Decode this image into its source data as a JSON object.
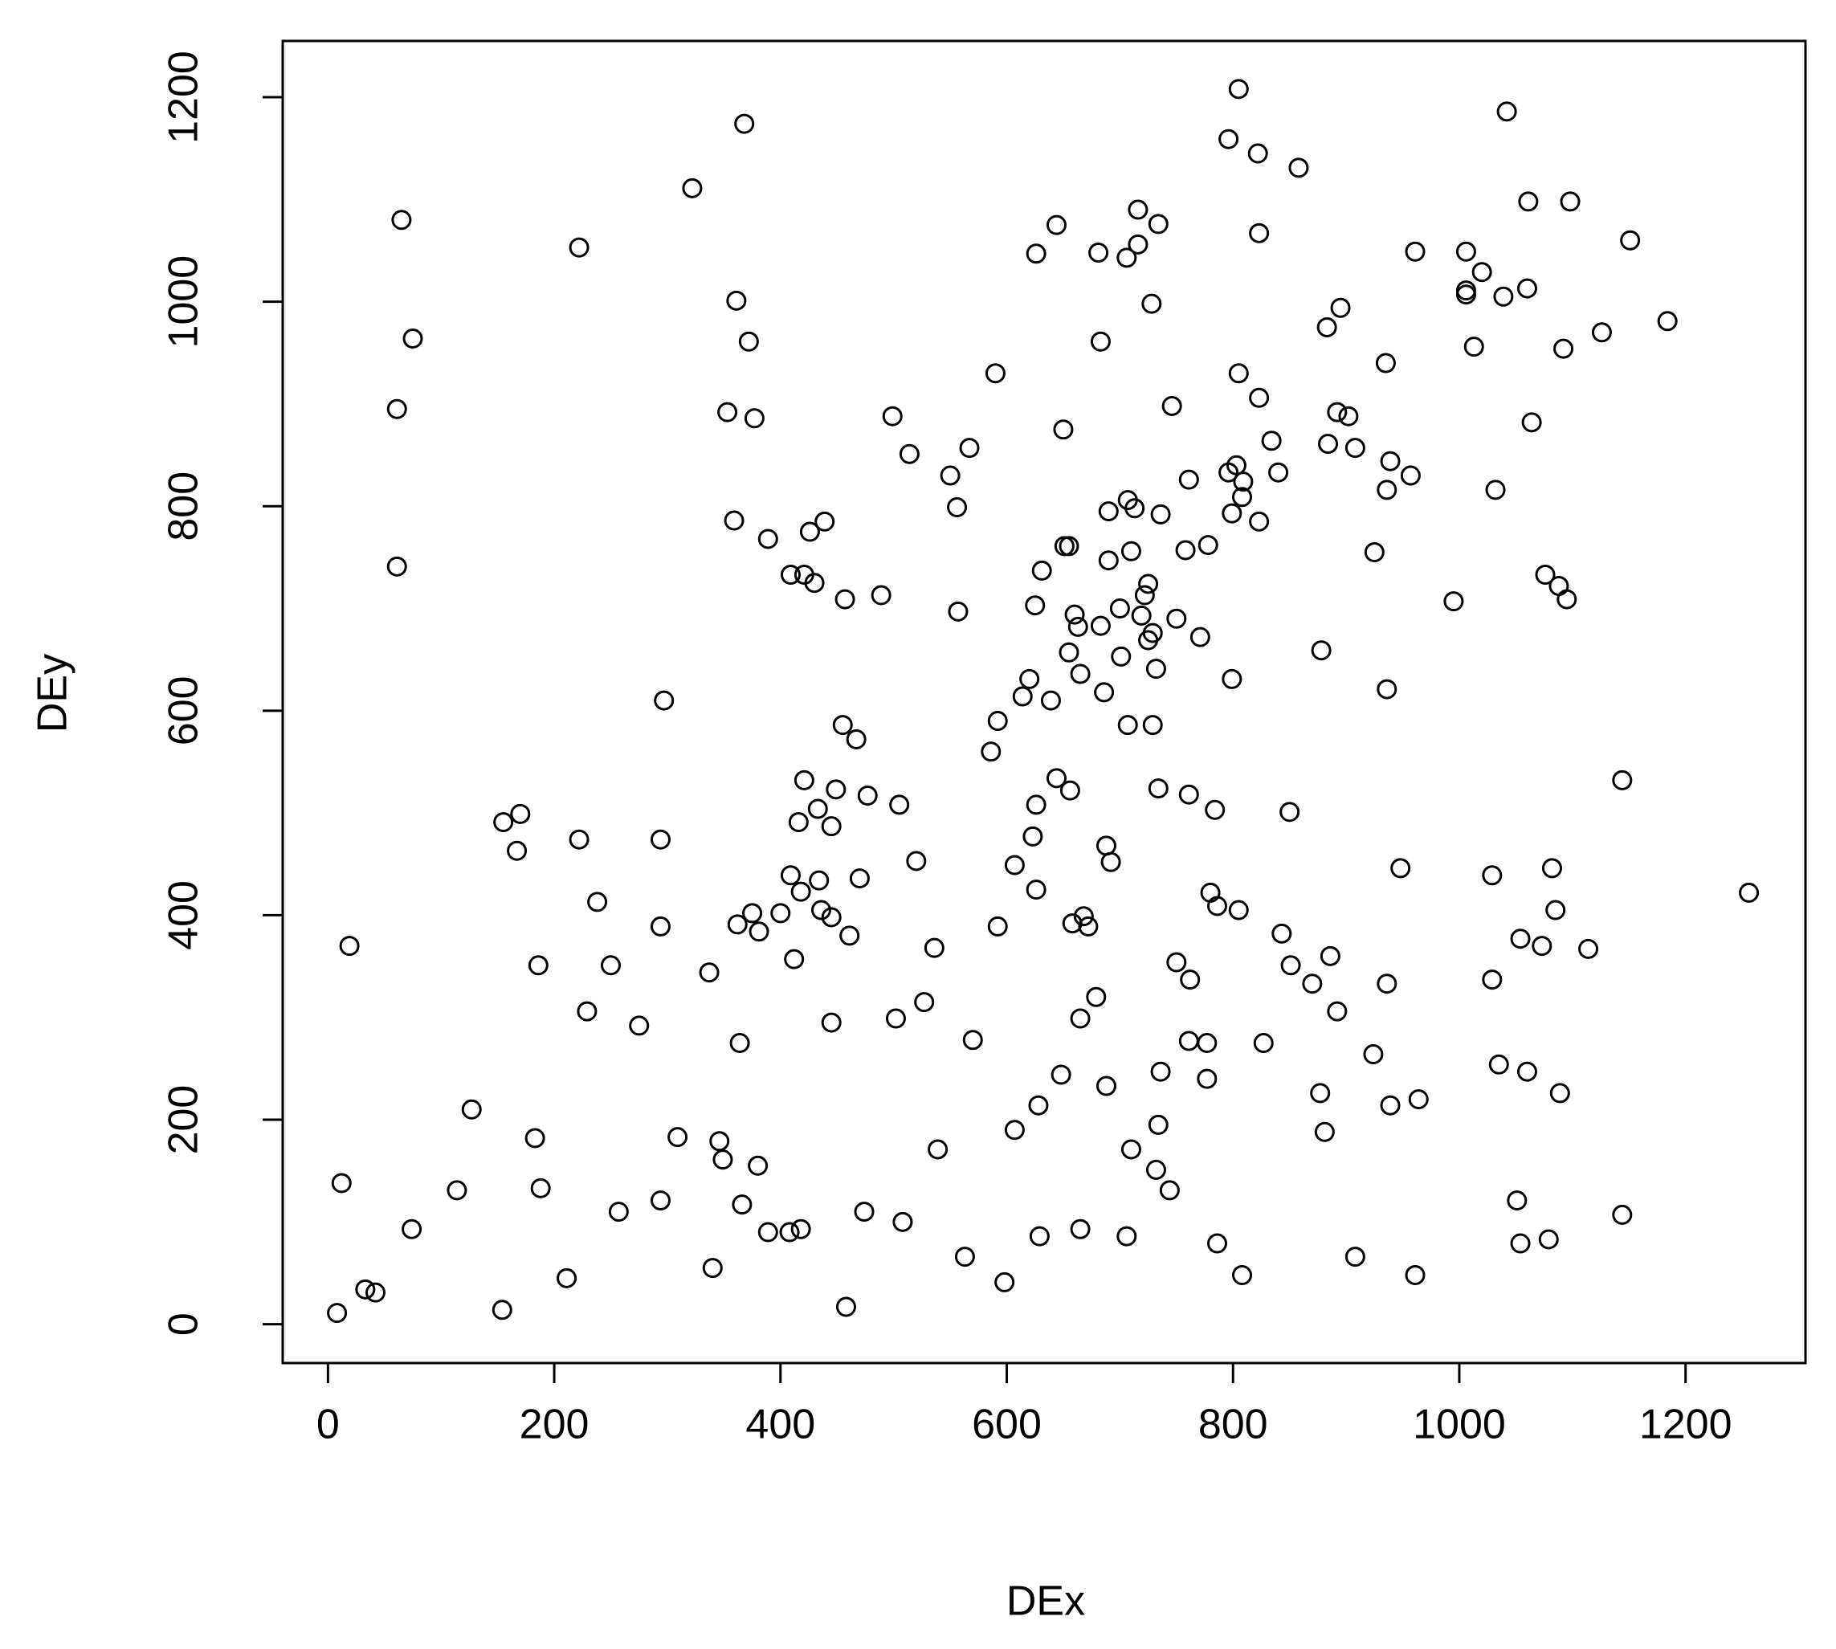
{
  "chart_data": {
    "type": "scatter",
    "x_label": "DEx",
    "y_label": "DEy",
    "xlim": [
      -40,
      1306
    ],
    "ylim": [
      -38,
      1255
    ],
    "xticks": [
      0,
      200,
      400,
      600,
      800,
      1000,
      1200
    ],
    "yticks": [
      0,
      200,
      400,
      600,
      800,
      1000,
      1200
    ],
    "color": "#000000",
    "x": [
      65,
      75,
      61,
      61,
      19,
      12,
      8,
      33,
      42,
      74,
      114,
      127,
      154,
      155,
      170,
      167,
      183,
      186,
      188,
      211,
      222,
      222,
      229,
      238,
      250,
      257,
      275,
      294,
      294,
      294,
      297,
      309,
      322,
      337,
      340,
      346,
      349,
      353,
      359,
      361,
      362,
      364,
      366,
      368,
      372,
      375,
      377,
      380,
      381,
      389,
      389,
      400,
      408,
      409,
      409,
      412,
      418,
      421,
      421,
      416,
      418,
      426,
      430,
      433,
      434,
      436,
      439,
      445,
      445,
      445,
      449,
      455,
      457,
      458,
      461,
      467,
      470,
      474,
      477,
      489,
      499,
      502,
      505,
      508,
      514,
      520,
      527,
      536,
      539,
      550,
      556,
      557,
      563,
      567,
      570,
      586,
      590,
      592,
      592,
      598,
      607,
      607,
      614,
      620,
      623,
      626,
      626,
      626,
      625,
      628,
      629,
      631,
      639,
      644,
      644,
      648,
      650,
      651,
      655,
      655,
      656,
      658,
      660,
      663,
      665,
      665,
      665,
      668,
      672,
      679,
      681,
      683,
      683,
      686,
      688,
      690,
      690,
      692,
      688,
      700,
      701,
      706,
      707,
      707,
      706,
      710,
      710,
      713,
      716,
      716,
      719,
      722,
      725,
      725,
      728,
      729,
      729,
      732,
      732,
      734,
      734,
      734,
      736,
      736,
      744,
      746,
      750,
      750,
      758,
      762,
      761,
      761,
      761,
      771,
      778,
      777,
      777,
      780,
      784,
      786,
      786,
      796,
      796,
      799,
      799,
      803,
      805,
      805,
      805,
      808,
      809,
      808,
      822,
      823,
      823,
      823,
      827,
      834,
      840,
      843,
      850,
      851,
      858,
      870,
      878,
      877,
      881,
      883,
      884,
      886,
      892,
      892,
      895,
      902,
      908,
      908,
      924,
      925,
      935,
      936,
      936,
      936,
      939,
      939,
      948,
      957,
      961,
      961,
      964,
      995,
      1006,
      1006,
      1006,
      1013,
      1020,
      1029,
      1029,
      1032,
      1035,
      1039,
      1042,
      1054,
      1051,
      1054,
      1060,
      1060,
      1061,
      1064,
      1073,
      1076,
      1079,
      1082,
      1085,
      1088,
      1089,
      1092,
      1095,
      1098,
      1114,
      1126,
      1144,
      1144,
      1151,
      1184,
      1256
    ],
    "y": [
      1080,
      964,
      895,
      741,
      370,
      138,
      11,
      34,
      31,
      93,
      131,
      210,
      14,
      491,
      499,
      463,
      182,
      351,
      133,
      45,
      1053,
      474,
      306,
      413,
      351,
      110,
      292,
      121,
      474,
      389,
      610,
      183,
      1111,
      344,
      55,
      179,
      161,
      892,
      786,
      1001,
      391,
      275,
      117,
      1174,
      961,
      402,
      886,
      155,
      384,
      768,
      90,
      402,
      90,
      733,
      439,
      357,
      93,
      733,
      532,
      491,
      423,
      775,
      725,
      504,
      434,
      405,
      785,
      398,
      487,
      295,
      523,
      586,
      709,
      17,
      380,
      572,
      436,
      110,
      517,
      713,
      888,
      299,
      508,
      100,
      851,
      453,
      315,
      368,
      171,
      830,
      799,
      697,
      66,
      857,
      278,
      560,
      930,
      590,
      389,
      41,
      449,
      190,
      614,
      631,
      477,
      508,
      425,
      1047,
      703,
      214,
      86,
      737,
      610,
      1075,
      534,
      244,
      875,
      761,
      761,
      657,
      522,
      392,
      694,
      682,
      636,
      299,
      93,
      399,
      389,
      320,
      1048,
      683,
      961,
      618,
      468,
      747,
      795,
      452,
      233,
      700,
      653,
      86,
      806,
      586,
      1043,
      756,
      171,
      798,
      1090,
      1056,
      693,
      713,
      724,
      669,
      998,
      586,
      676,
      641,
      151,
      1076,
      524,
      195,
      247,
      792,
      131,
      898,
      354,
      690,
      757,
      337,
      826,
      518,
      277,
      672,
      762,
      275,
      240,
      422,
      503,
      409,
      79,
      1159,
      833,
      793,
      631,
      840,
      405,
      1208,
      930,
      809,
      824,
      48,
      1145,
      1067,
      785,
      906,
      275,
      864,
      833,
      382,
      501,
      351,
      1131,
      333,
      659,
      226,
      188,
      975,
      861,
      360,
      892,
      306,
      994,
      888,
      857,
      66,
      264,
      755,
      940,
      816,
      621,
      333,
      844,
      214,
      446,
      830,
      1049,
      48,
      220,
      707,
      1049,
      1011,
      1007,
      956,
      1029,
      439,
      337,
      816,
      254,
      1005,
      1186,
      377,
      121,
      79,
      247,
      1013,
      1098,
      882,
      370,
      733,
      83,
      446,
      405,
      722,
      226,
      954,
      709,
      1098,
      367,
      970,
      532,
      107,
      1060,
      981,
      422
    ]
  }
}
